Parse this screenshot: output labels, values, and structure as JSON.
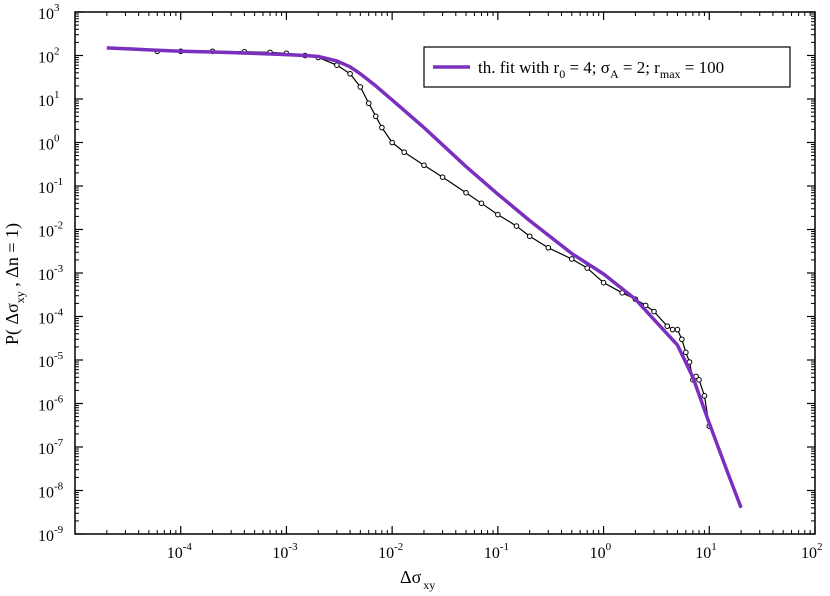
{
  "chart_data": {
    "type": "line",
    "x_scale": "log",
    "y_scale": "log",
    "xlim": [
      1e-05,
      100
    ],
    "ylim": [
      1e-09,
      1000
    ],
    "grid": false,
    "legend_position": "top-right",
    "xlabel": {
      "main": "Δσ",
      "sub": "xy"
    },
    "ylabel": {
      "prefix": "P( Δσ",
      "sub": "xy",
      "suffix": " , Δn = 1)"
    },
    "x_ticks": [
      {
        "value": 0.0001,
        "base": "10",
        "exp": "-4"
      },
      {
        "value": 0.001,
        "base": "10",
        "exp": "-3"
      },
      {
        "value": 0.01,
        "base": "10",
        "exp": "-2"
      },
      {
        "value": 0.1,
        "base": "10",
        "exp": "-1"
      },
      {
        "value": 1,
        "base": "10",
        "exp": "0"
      },
      {
        "value": 10,
        "base": "10",
        "exp": "1"
      },
      {
        "value": 100,
        "base": "10",
        "exp": "2"
      }
    ],
    "y_ticks": [
      {
        "value": 1e-09,
        "base": "10",
        "exp": "-9"
      },
      {
        "value": 1e-08,
        "base": "10",
        "exp": "-8"
      },
      {
        "value": 1e-07,
        "base": "10",
        "exp": "-7"
      },
      {
        "value": 1e-06,
        "base": "10",
        "exp": "-6"
      },
      {
        "value": 1e-05,
        "base": "10",
        "exp": "-5"
      },
      {
        "value": 0.0001,
        "base": "10",
        "exp": "-4"
      },
      {
        "value": 0.001,
        "base": "10",
        "exp": "-3"
      },
      {
        "value": 0.01,
        "base": "10",
        "exp": "-2"
      },
      {
        "value": 0.1,
        "base": "10",
        "exp": "-1"
      },
      {
        "value": 1,
        "base": "10",
        "exp": "0"
      },
      {
        "value": 10,
        "base": "10",
        "exp": "1"
      },
      {
        "value": 100,
        "base": "10",
        "exp": "2"
      },
      {
        "value": 1000,
        "base": "10",
        "exp": "3"
      }
    ],
    "legend": {
      "parts": [
        {
          "t": "th. fit with r",
          "sub": "0"
        },
        {
          "t": " = 4; σ",
          "sub": "A"
        },
        {
          "t": " = 2; r",
          "sub": "max"
        },
        {
          "t": " = 100",
          "sub": ""
        }
      ]
    },
    "series": [
      {
        "name": "th. fit with r0 = 4; σA = 2; rmax = 100",
        "color": "#7b2fbe",
        "style": "line",
        "x": [
          2e-05,
          5e-05,
          0.0001,
          0.0002,
          0.0005,
          0.001,
          0.0015,
          0.002,
          0.003,
          0.004,
          0.005,
          0.007,
          0.01,
          0.02,
          0.05,
          0.1,
          0.2,
          0.5,
          1,
          2,
          3,
          5,
          7,
          10,
          15,
          20
        ],
        "y": [
          150,
          135,
          125,
          120,
          112,
          105,
          100,
          95,
          75,
          55,
          38,
          20,
          9.5,
          2.2,
          0.28,
          0.065,
          0.016,
          0.0028,
          0.00095,
          0.00025,
          8.5e-05,
          2.2e-05,
          4e-06,
          3.5e-07,
          2.5e-08,
          4e-09
        ]
      },
      {
        "name": "",
        "color": "#000000",
        "style": "line+markers",
        "x": [
          6e-05,
          0.0001,
          0.0002,
          0.0004,
          0.0007,
          0.001,
          0.0015,
          0.002,
          0.003,
          0.004,
          0.005,
          0.006,
          0.007,
          0.008,
          0.01,
          0.013,
          0.02,
          0.03,
          0.05,
          0.07,
          0.1,
          0.15,
          0.2,
          0.3,
          0.5,
          0.7,
          1,
          1.5,
          2,
          2.5,
          3,
          4,
          4.5,
          5,
          5.5,
          6,
          6.5,
          7,
          7.5,
          8,
          9,
          10
        ],
        "y": [
          125,
          125,
          125,
          122,
          118,
          112,
          100,
          90,
          60,
          38,
          19,
          8,
          4,
          2.2,
          1,
          0.6,
          0.3,
          0.16,
          0.07,
          0.04,
          0.022,
          0.012,
          0.007,
          0.0038,
          0.0021,
          0.0013,
          0.0006,
          0.00035,
          0.00025,
          0.00018,
          0.00013,
          6e-05,
          5e-05,
          5e-05,
          3e-05,
          1.5e-05,
          9e-06,
          3.5e-06,
          4.2e-06,
          3.5e-06,
          1.5e-06,
          3e-07
        ]
      }
    ]
  }
}
